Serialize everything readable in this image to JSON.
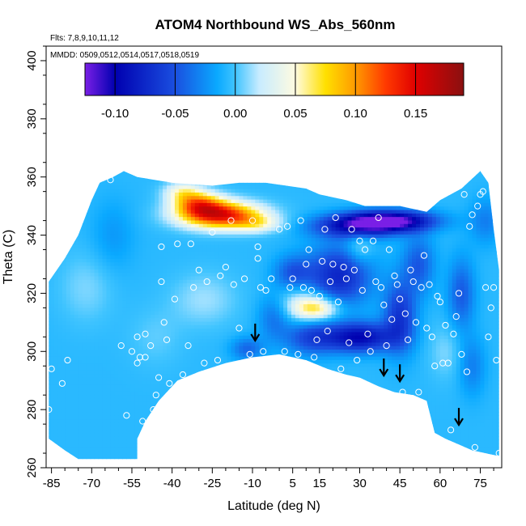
{
  "chart_data": {
    "type": "heatmap",
    "title": "ATOM4 Northbound WS_Abs_560nm",
    "annotations": {
      "flights": "Flts: 7,8,9,10,11,12",
      "dates": "MMDD: 0509,0512,0514,0517,0518,0519"
    },
    "xlabel": "Latitude (deg N)",
    "ylabel": "Theta (C)",
    "xlim": [
      -87,
      83
    ],
    "ylim": [
      260,
      405
    ],
    "x_ticks": [
      -85,
      -70,
      -55,
      -40,
      -25,
      -10,
      5,
      15,
      30,
      45,
      60,
      75
    ],
    "y_ticks": [
      260,
      280,
      300,
      320,
      340,
      360,
      380,
      400
    ],
    "colorbar": {
      "range": [
        -0.125,
        0.19
      ],
      "ticks": [
        -0.1,
        -0.05,
        0.0,
        0.05,
        0.1,
        0.15
      ],
      "tick_labels": [
        "-0.10",
        "-0.05",
        "0.00",
        "0.05",
        "0.10",
        "0.15"
      ],
      "stops": [
        {
          "value": -0.125,
          "color": "#7a1fe6"
        },
        {
          "value": -0.1,
          "color": "#0000b0"
        },
        {
          "value": -0.05,
          "color": "#1a4fe0"
        },
        {
          "value": -0.015,
          "color": "#0aa9ff"
        },
        {
          "value": 0.0,
          "color": "#40c4ff"
        },
        {
          "value": 0.02,
          "color": "#c8ecff"
        },
        {
          "value": 0.05,
          "color": "#fffbe0"
        },
        {
          "value": 0.075,
          "color": "#ffe000"
        },
        {
          "value": 0.1,
          "color": "#ff9a00"
        },
        {
          "value": 0.125,
          "color": "#ff3a00"
        },
        {
          "value": 0.15,
          "color": "#e00000"
        },
        {
          "value": 0.19,
          "color": "#8a1010"
        }
      ]
    },
    "domain_top": [
      [
        -86,
        324
      ],
      [
        -80,
        332
      ],
      [
        -75,
        340
      ],
      [
        -70,
        352
      ],
      [
        -67,
        358
      ],
      [
        -62,
        360
      ],
      [
        -58,
        362
      ],
      [
        -53,
        360
      ],
      [
        -40,
        358
      ],
      [
        -25,
        357
      ],
      [
        -15,
        358
      ],
      [
        -5,
        358
      ],
      [
        10,
        356
      ],
      [
        15,
        354
      ],
      [
        25,
        352
      ],
      [
        32,
        350
      ],
      [
        40,
        350
      ],
      [
        45,
        350
      ],
      [
        55,
        348
      ],
      [
        60,
        352
      ],
      [
        68,
        356
      ],
      [
        75,
        362
      ],
      [
        78,
        358
      ],
      [
        80,
        342
      ],
      [
        82,
        328
      ]
    ],
    "domain_bottom": [
      [
        -86,
        270
      ],
      [
        -80,
        266
      ],
      [
        -75,
        263
      ],
      [
        -53,
        263
      ],
      [
        -53,
        270
      ],
      [
        -50,
        276
      ],
      [
        -45,
        283
      ],
      [
        -38,
        290
      ],
      [
        -30,
        293
      ],
      [
        -20,
        296
      ],
      [
        -10,
        298
      ],
      [
        0,
        299
      ],
      [
        10,
        297
      ],
      [
        18,
        294
      ],
      [
        25,
        292
      ],
      [
        30,
        291
      ],
      [
        37,
        288
      ],
      [
        43,
        286
      ],
      [
        50,
        285
      ],
      [
        55,
        283
      ],
      [
        58,
        272
      ],
      [
        62,
        270
      ],
      [
        67,
        268
      ],
      [
        72,
        266
      ],
      [
        82,
        264
      ]
    ],
    "anomalies": [
      {
        "lat": -22,
        "theta": 347,
        "value": 0.15,
        "dlat": 15,
        "dtheta": 4.5
      },
      {
        "lat": -30,
        "theta": 351,
        "value": 0.09,
        "dlat": 9,
        "dtheta": 4
      },
      {
        "lat": -36,
        "theta": 355,
        "value": 0.05,
        "dlat": 7,
        "dtheta": 3.5
      },
      {
        "lat": -8,
        "theta": 344,
        "value": 0.04,
        "dlat": 9,
        "dtheta": 3
      },
      {
        "lat": 14,
        "theta": 315,
        "value": 0.07,
        "dlat": 8,
        "dtheta": 4
      },
      {
        "lat": 8,
        "theta": 317,
        "value": 0.03,
        "dlat": 9,
        "dtheta": 7
      },
      {
        "lat": 30,
        "theta": 336,
        "value": 0.025,
        "dlat": 5,
        "dtheta": 6
      },
      {
        "lat": -28,
        "theta": 318,
        "value": 0.02,
        "dlat": 12,
        "dtheta": 9
      },
      {
        "lat": -72,
        "theta": 322,
        "value": 0.015,
        "dlat": 10,
        "dtheta": 12
      },
      {
        "lat": 62,
        "theta": 300,
        "value": 0.015,
        "dlat": 6,
        "dtheta": 9
      },
      {
        "lat": -46,
        "theta": 305,
        "value": 0.01,
        "dlat": 10,
        "dtheta": 10
      },
      {
        "lat": 41,
        "theta": 345,
        "value": -0.12,
        "dlat": 16,
        "dtheta": 3.5
      },
      {
        "lat": 28,
        "theta": 343,
        "value": -0.07,
        "dlat": 16,
        "dtheta": 4
      },
      {
        "lat": 22,
        "theta": 326,
        "value": -0.07,
        "dlat": 12,
        "dtheta": 10
      },
      {
        "lat": 30,
        "theta": 305,
        "value": -0.09,
        "dlat": 12,
        "dtheta": 5
      },
      {
        "lat": 12,
        "theta": 305,
        "value": -0.05,
        "dlat": 10,
        "dtheta": 6
      },
      {
        "lat": 45,
        "theta": 312,
        "value": -0.06,
        "dlat": 6,
        "dtheta": 12
      },
      {
        "lat": 5,
        "theta": 327,
        "value": -0.04,
        "dlat": 7,
        "dtheta": 6
      },
      {
        "lat": 52,
        "theta": 330,
        "value": -0.04,
        "dlat": 6,
        "dtheta": 10
      },
      {
        "lat": 68,
        "theta": 320,
        "value": -0.04,
        "dlat": 5,
        "dtheta": 12
      },
      {
        "lat": 77,
        "theta": 345,
        "value": -0.025,
        "dlat": 6,
        "dtheta": 8
      },
      {
        "lat": 72,
        "theta": 295,
        "value": -0.025,
        "dlat": 5,
        "dtheta": 10
      },
      {
        "lat": -2,
        "theta": 312,
        "value": -0.03,
        "dlat": 6,
        "dtheta": 8
      },
      {
        "lat": -12,
        "theta": 301,
        "value": -0.035,
        "dlat": 6,
        "dtheta": 4
      },
      {
        "lat": -62,
        "theta": 340,
        "value": -0.015,
        "dlat": 8,
        "dtheta": 12
      }
    ],
    "sample_points": [
      [
        -86,
        280
      ],
      [
        -85,
        294
      ],
      [
        -85,
        329
      ],
      [
        -83,
        333
      ],
      [
        -81,
        289
      ],
      [
        -79,
        297
      ],
      [
        -78,
        342
      ],
      [
        -76,
        345
      ],
      [
        -63,
        359
      ],
      [
        -59,
        302
      ],
      [
        -57,
        278
      ],
      [
        -55,
        300
      ],
      [
        -53,
        296
      ],
      [
        -53,
        305
      ],
      [
        -52,
        298
      ],
      [
        -51,
        276
      ],
      [
        -50,
        306
      ],
      [
        -50,
        298
      ],
      [
        -48,
        302
      ],
      [
        -47,
        280
      ],
      [
        -46,
        285
      ],
      [
        -45,
        291
      ],
      [
        -44,
        336
      ],
      [
        -44,
        324
      ],
      [
        -43,
        310
      ],
      [
        -42,
        304
      ],
      [
        -41,
        289
      ],
      [
        -39,
        318
      ],
      [
        -38,
        337
      ],
      [
        -36,
        292
      ],
      [
        -34,
        302
      ],
      [
        -33,
        337
      ],
      [
        -32,
        322
      ],
      [
        -30,
        328
      ],
      [
        -28,
        296
      ],
      [
        -27,
        324
      ],
      [
        -25,
        341
      ],
      [
        -23,
        297
      ],
      [
        -22,
        326
      ],
      [
        -20,
        329
      ],
      [
        -18,
        345
      ],
      [
        -17,
        323
      ],
      [
        -15,
        308
      ],
      [
        -13,
        325
      ],
      [
        -11,
        299
      ],
      [
        -10,
        345
      ],
      [
        -8,
        336
      ],
      [
        -8,
        332
      ],
      [
        -7,
        322
      ],
      [
        -6,
        300
      ],
      [
        -5,
        321
      ],
      [
        -3,
        325
      ],
      [
        0,
        342
      ],
      [
        2,
        300
      ],
      [
        3,
        343
      ],
      [
        4,
        322
      ],
      [
        5,
        325
      ],
      [
        7,
        299
      ],
      [
        8,
        345
      ],
      [
        9,
        322
      ],
      [
        10,
        330
      ],
      [
        11,
        335
      ],
      [
        12,
        321
      ],
      [
        13,
        298
      ],
      [
        14,
        304
      ],
      [
        15,
        319
      ],
      [
        16,
        331
      ],
      [
        17,
        342
      ],
      [
        18,
        307
      ],
      [
        19,
        324
      ],
      [
        20,
        330
      ],
      [
        21,
        346
      ],
      [
        22,
        317
      ],
      [
        23,
        294
      ],
      [
        24,
        329
      ],
      [
        25,
        325
      ],
      [
        26,
        303
      ],
      [
        27,
        342
      ],
      [
        28,
        328
      ],
      [
        29,
        297
      ],
      [
        30,
        338
      ],
      [
        31,
        321
      ],
      [
        32,
        335
      ],
      [
        33,
        306
      ],
      [
        34,
        300
      ],
      [
        35,
        338
      ],
      [
        36,
        324
      ],
      [
        37,
        346
      ],
      [
        38,
        322
      ],
      [
        39,
        316
      ],
      [
        40,
        302
      ],
      [
        41,
        335
      ],
      [
        42,
        311
      ],
      [
        43,
        326
      ],
      [
        44,
        323
      ],
      [
        45,
        318
      ],
      [
        46,
        286
      ],
      [
        47,
        313
      ],
      [
        48,
        304
      ],
      [
        49,
        328
      ],
      [
        50,
        324
      ],
      [
        51,
        310
      ],
      [
        52,
        286
      ],
      [
        53,
        322
      ],
      [
        54,
        333
      ],
      [
        55,
        308
      ],
      [
        56,
        323
      ],
      [
        57,
        305
      ],
      [
        58,
        295
      ],
      [
        59,
        319
      ],
      [
        60,
        317
      ],
      [
        61,
        296
      ],
      [
        62,
        309
      ],
      [
        63,
        296
      ],
      [
        64,
        273
      ],
      [
        65,
        306
      ],
      [
        66,
        312
      ],
      [
        67,
        320
      ],
      [
        68,
        299
      ],
      [
        69,
        354
      ],
      [
        70,
        293
      ],
      [
        71,
        343
      ],
      [
        72,
        347
      ],
      [
        73,
        267
      ],
      [
        74,
        350
      ],
      [
        75,
        354
      ],
      [
        76,
        355
      ],
      [
        77,
        322
      ],
      [
        78,
        305
      ],
      [
        79,
        315
      ],
      [
        80,
        322
      ],
      [
        81,
        297
      ],
      [
        82,
        265
      ]
    ],
    "arrows": [
      {
        "lat": -9,
        "theta": 304
      },
      {
        "lat": 39,
        "theta": 292
      },
      {
        "lat": 45,
        "theta": 290
      },
      {
        "lat": 67,
        "theta": 275
      }
    ]
  }
}
